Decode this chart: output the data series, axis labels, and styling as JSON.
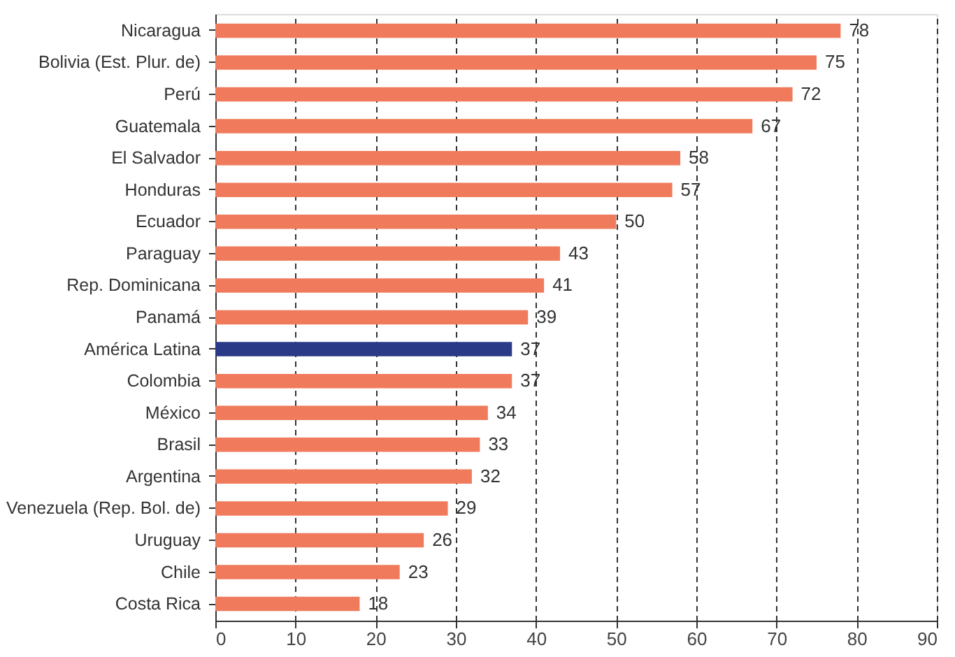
{
  "chart_data": {
    "type": "bar",
    "orientation": "horizontal",
    "categories": [
      "Nicaragua",
      "Bolivia (Est. Plur. de)",
      "Perú",
      "Guatemala",
      "El Salvador",
      "Honduras",
      "Ecuador",
      "Paraguay",
      "Rep. Dominicana",
      "Panamá",
      "América Latina",
      "Colombia",
      "México",
      "Brasil",
      "Argentina",
      "Venezuela (Rep. Bol. de)",
      "Uruguay",
      "Chile",
      "Costa Rica"
    ],
    "values": [
      78,
      75,
      72,
      67,
      58,
      57,
      50,
      43,
      41,
      39,
      37,
      37,
      34,
      33,
      32,
      29,
      26,
      23,
      18
    ],
    "colors": [
      "#f07b5c",
      "#f07b5c",
      "#f07b5c",
      "#f07b5c",
      "#f07b5c",
      "#f07b5c",
      "#f07b5c",
      "#f07b5c",
      "#f07b5c",
      "#f07b5c",
      "#2b3a87",
      "#f07b5c",
      "#f07b5c",
      "#f07b5c",
      "#f07b5c",
      "#f07b5c",
      "#f07b5c",
      "#f07b5c",
      "#f07b5c"
    ],
    "xlim": [
      0,
      90
    ],
    "xticks": [
      0,
      10,
      20,
      30,
      40,
      50,
      60,
      70,
      80,
      90
    ],
    "grid": "x",
    "data_labels": true
  }
}
